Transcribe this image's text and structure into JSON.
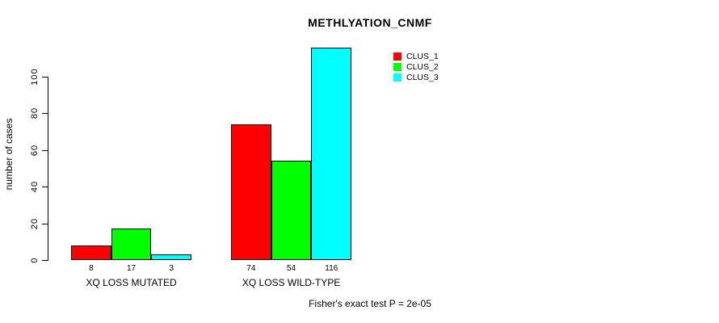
{
  "chart_data": {
    "type": "bar",
    "title": "METHLYATION_CNMF",
    "ylabel": "number of cases",
    "xlabel": "",
    "categories": [
      "XQ LOSS MUTATED",
      "XQ LOSS WILD-TYPE"
    ],
    "series": [
      {
        "name": "CLUS_1",
        "color": "#ff0000",
        "values": [
          8,
          74
        ]
      },
      {
        "name": "CLUS_2",
        "color": "#00ff00",
        "values": [
          17,
          54
        ]
      },
      {
        "name": "CLUS_3",
        "color": "#00ffff",
        "values": [
          3,
          116
        ]
      }
    ],
    "bar_value_labels": [
      [
        8,
        17,
        3
      ],
      [
        74,
        54,
        116
      ]
    ],
    "yticks": [
      0,
      20,
      40,
      60,
      80,
      100
    ],
    "ylim": [
      0,
      116
    ],
    "grid": false,
    "legend_position": "top-right",
    "bar_border_color": "#000000",
    "annotation": "Fisher's exact test P = 2e-05"
  }
}
